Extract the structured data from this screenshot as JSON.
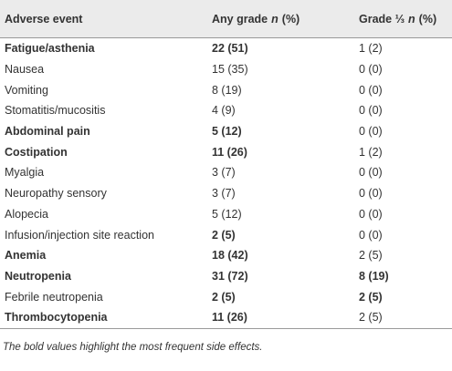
{
  "table": {
    "header": [
      [
        "Adverse event"
      ],
      [
        "Any grade",
        "n",
        "(%)"
      ],
      [
        "Grade ⅓",
        "n",
        "(%)"
      ]
    ],
    "rows": [
      [
        "Fatigue/asthenia",
        "22 (51)",
        "1 (2)"
      ],
      [
        "Nausea",
        "15 (35)",
        "0 (0)"
      ],
      [
        "Vomiting",
        "8 (19)",
        "0 (0)"
      ],
      [
        "Stomatitis/mucositis",
        "4 (9)",
        "0 (0)"
      ],
      [
        "Abdominal pain",
        "5 (12)",
        "0 (0)"
      ],
      [
        "Costipation",
        "11 (26)",
        "1 (2)"
      ],
      [
        "Myalgia",
        "3 (7)",
        "0 (0)"
      ],
      [
        "Neuropathy sensory",
        "3 (7)",
        "0 (0)"
      ],
      [
        "Alopecia",
        "5 (12)",
        "0 (0)"
      ],
      [
        "Infusion/injection site reaction",
        "2 (5)",
        "0 (0)"
      ],
      [
        "Anemia",
        "18 (42)",
        "2 (5)"
      ],
      [
        "Neutropenia",
        "31 (72)",
        "8 (19)"
      ],
      [
        "Febrile neutropenia",
        "2 (5)",
        "2 (5)"
      ],
      [
        "Thrombocytopenia",
        "11 (26)",
        "2 (5)"
      ]
    ],
    "bold": [
      [
        true,
        true,
        false
      ],
      [
        false,
        false,
        false
      ],
      [
        false,
        false,
        false
      ],
      [
        false,
        false,
        false
      ],
      [
        true,
        true,
        false
      ],
      [
        true,
        true,
        false
      ],
      [
        false,
        false,
        false
      ],
      [
        false,
        false,
        false
      ],
      [
        false,
        false,
        false
      ],
      [
        false,
        true,
        false
      ],
      [
        true,
        true,
        false
      ],
      [
        true,
        true,
        true
      ],
      [
        false,
        true,
        true
      ],
      [
        true,
        true,
        false
      ]
    ],
    "footnote": "The bold values highlight the most frequent side effects."
  }
}
